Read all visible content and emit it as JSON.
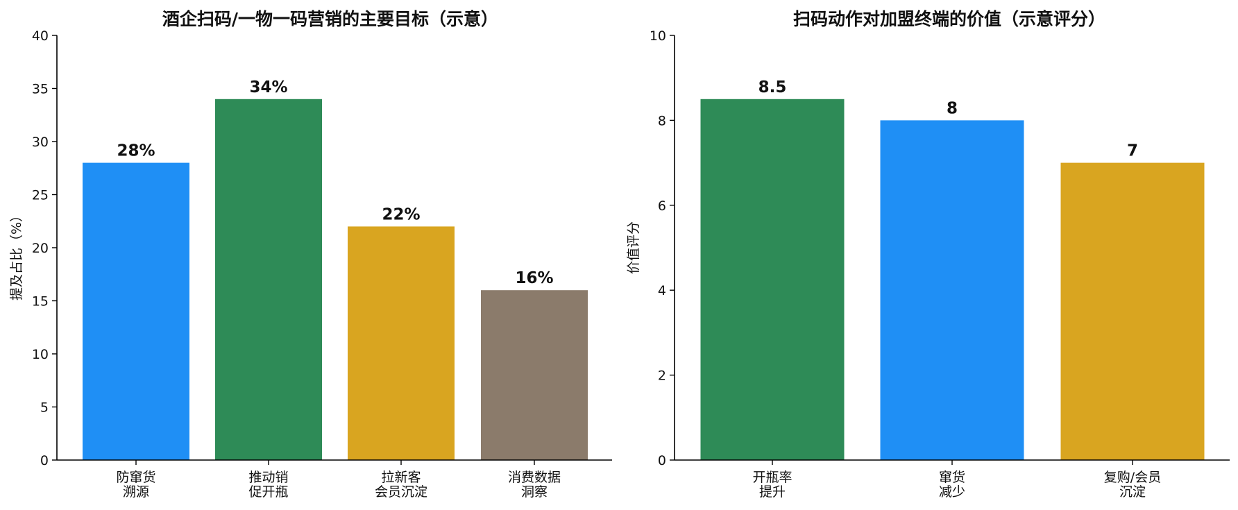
{
  "chart_data": [
    {
      "type": "bar",
      "title": "酒企扫码/一物一码营销的主要目标（示意）",
      "ylabel": "提及占比（%）",
      "xlabel": "",
      "ylim": [
        0,
        40
      ],
      "yticks": [
        0,
        5,
        10,
        15,
        20,
        25,
        30,
        35,
        40
      ],
      "categories": [
        [
          "防窜货",
          "溯源"
        ],
        [
          "推动销",
          "促开瓶"
        ],
        [
          "拉新客",
          "会员沉淀"
        ],
        [
          "消费数据",
          "洞察"
        ]
      ],
      "values": [
        28,
        34,
        22,
        16
      ],
      "data_labels": [
        "28%",
        "34%",
        "22%",
        "16%"
      ],
      "colors": [
        "#1f8ff5",
        "#2e8b57",
        "#d9a520",
        "#8b7b6b"
      ],
      "grid": false
    },
    {
      "type": "bar",
      "title": "扫码动作对加盟终端的价值（示意评分）",
      "ylabel": "价值评分",
      "xlabel": "",
      "ylim": [
        0,
        10
      ],
      "yticks": [
        0,
        2,
        4,
        6,
        8,
        10
      ],
      "categories": [
        [
          "开瓶率",
          "提升"
        ],
        [
          "窜货",
          "减少"
        ],
        [
          "复购/会员",
          "沉淀"
        ]
      ],
      "values": [
        8.5,
        8,
        7
      ],
      "data_labels": [
        "8.5",
        "8",
        "7"
      ],
      "colors": [
        "#2e8b57",
        "#1f8ff5",
        "#d9a520"
      ],
      "grid": false
    }
  ]
}
